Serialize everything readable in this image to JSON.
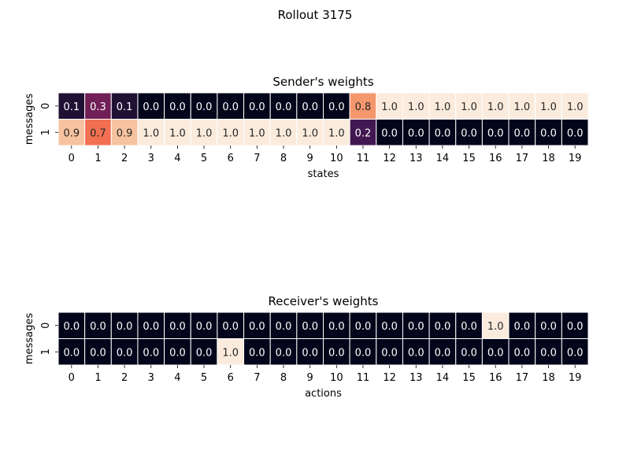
{
  "figure": {
    "title": "Rollout 3175"
  },
  "chart_data": [
    {
      "type": "heatmap",
      "title": "Sender's weights",
      "xlabel": "states",
      "ylabel": "messages",
      "x_ticks": [
        "0",
        "1",
        "2",
        "3",
        "4",
        "5",
        "6",
        "7",
        "8",
        "9",
        "10",
        "11",
        "12",
        "13",
        "14",
        "15",
        "16",
        "17",
        "18",
        "19"
      ],
      "y_ticks": [
        "0",
        "1"
      ],
      "value_range": [
        0,
        1
      ],
      "colormap": "rocket",
      "values": [
        [
          0.1,
          0.3,
          0.1,
          0.0,
          0.0,
          0.0,
          0.0,
          0.0,
          0.0,
          0.0,
          0.0,
          0.8,
          1.0,
          1.0,
          1.0,
          1.0,
          1.0,
          1.0,
          1.0,
          1.0
        ],
        [
          0.9,
          0.7,
          0.9,
          1.0,
          1.0,
          1.0,
          1.0,
          1.0,
          1.0,
          1.0,
          1.0,
          0.2,
          0.0,
          0.0,
          0.0,
          0.0,
          0.0,
          0.0,
          0.0,
          0.0
        ]
      ]
    },
    {
      "type": "heatmap",
      "title": "Receiver's weights",
      "xlabel": "actions",
      "ylabel": "messages",
      "x_ticks": [
        "0",
        "1",
        "2",
        "3",
        "4",
        "5",
        "6",
        "7",
        "8",
        "9",
        "10",
        "11",
        "12",
        "13",
        "14",
        "15",
        "16",
        "17",
        "18",
        "19"
      ],
      "y_ticks": [
        "0",
        "1"
      ],
      "value_range": [
        0,
        1
      ],
      "colormap": "rocket",
      "values": [
        [
          0.0,
          0.0,
          0.0,
          0.0,
          0.0,
          0.0,
          0.0,
          0.0,
          0.0,
          0.0,
          0.0,
          0.0,
          0.0,
          0.0,
          0.0,
          0.0,
          1.0,
          0.0,
          0.0,
          0.0
        ],
        [
          0.0,
          0.0,
          0.0,
          0.0,
          0.0,
          0.0,
          1.0,
          0.0,
          0.0,
          0.0,
          0.0,
          0.0,
          0.0,
          0.0,
          0.0,
          0.0,
          0.0,
          0.0,
          0.0,
          0.0
        ]
      ]
    }
  ]
}
